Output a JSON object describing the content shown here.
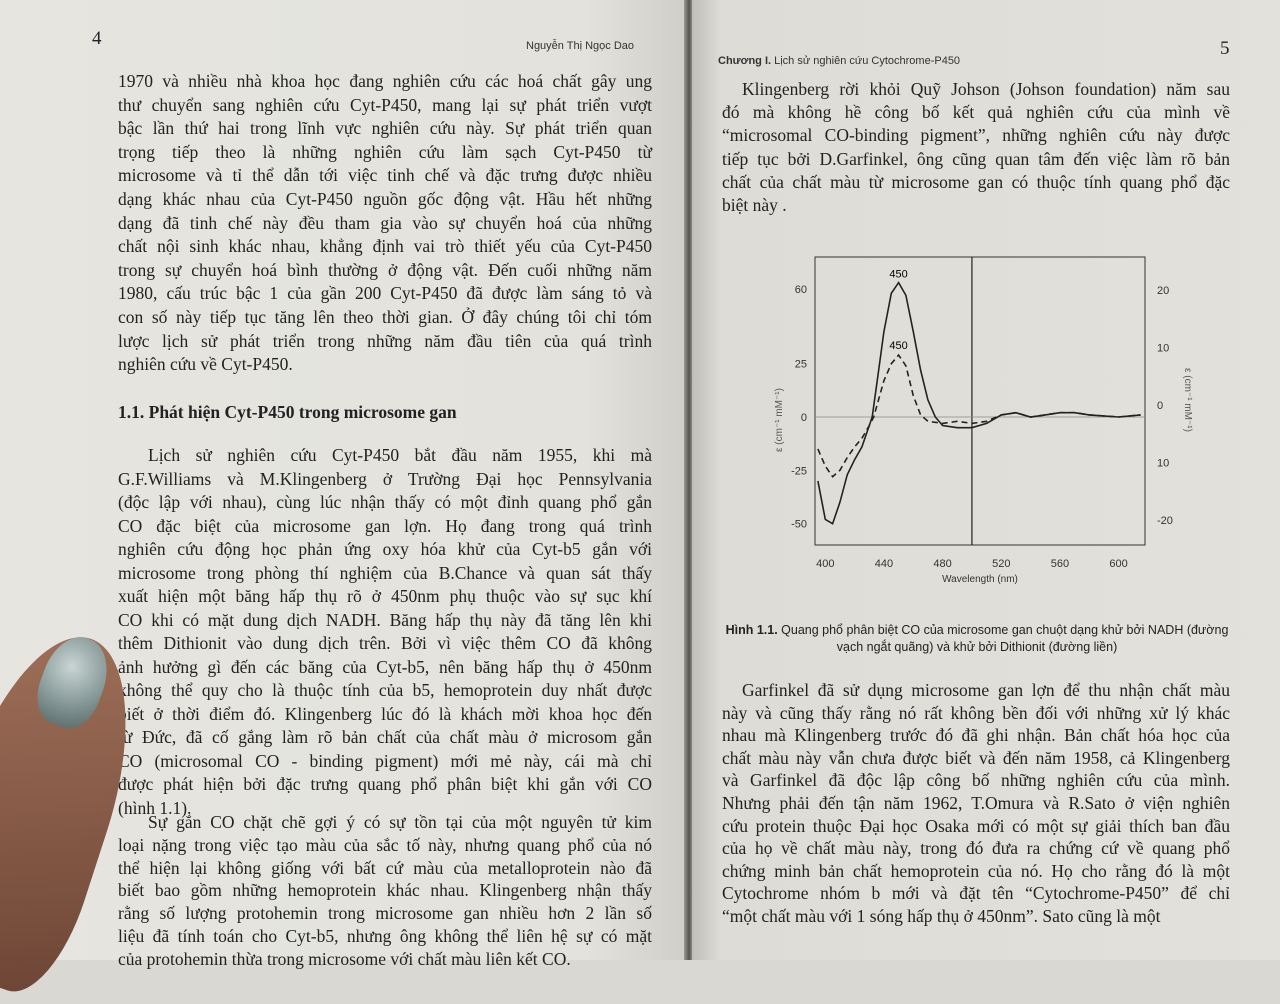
{
  "left_page": {
    "page_number": "4",
    "running_header": "Nguyễn Thị Ngọc Dao",
    "paragraph1": [
      "1970 và nhiều nhà khoa học đang nghiên cứu các hoá chất gây ung",
      "thư chuyển sang nghiên cứu Cyt-P450, mang lại sự phát triển vượt",
      "bậc lần thứ hai trong lĩnh vực nghiên cứu này. Sự phát triển quan",
      "trọng tiếp theo là những nghiên cứu làm sạch Cyt-P450 từ",
      "microsome và tỉ thể dẫn tới việc tinh chế và đặc trưng được nhiều",
      "dạng khác nhau của Cyt-P450 nguồn gốc động vật. Hầu hết những",
      "dạng đã tinh chế này đều tham gia vào sự chuyển hoá của những",
      "chất nội sinh khác nhau, khẳng định vai trò thiết yếu của Cyt-P450",
      "trong sự chuyển hoá bình thường ở động vật. Đến cuối những năm",
      "1980, cấu trúc bậc 1 của gần 200 Cyt-P450 đã được làm sáng tỏ và",
      "con số này tiếp tục tăng lên theo thời gian. Ở đây chúng tôi chỉ tóm",
      "lược lịch sử phát triển trong những năm đầu tiên của quá trình",
      "nghiên cứu về Cyt-P450."
    ],
    "section_heading": "1.1. Phát hiện  Cyt-P450 trong microsome gan",
    "paragraph2": [
      "Lịch sử nghiên cứu Cyt-P450 bắt đầu năm 1955, khi mà",
      "G.F.Williams và M.Klingenberg ở Trường Đại học Pennsylvania",
      "(độc lập với nhau), cùng lúc nhận thấy có một đỉnh quang phổ gắn",
      "CO đặc biệt của microsome gan lợn. Họ đang trong quá trình",
      "nghiên cứu động học phản ứng oxy hóa khử của Cyt-b5 gắn với",
      "microsome trong phòng thí nghiệm của B.Chance và quan sát thấy",
      "xuất hiện một băng hấp thụ rõ ở 450nm phụ thuộc vào sự sục khí",
      "CO khi có mặt dung dịch NADH. Băng hấp thụ này đã tăng lên khi",
      "thêm Dithionit vào dung dịch trên. Bởi vì việc thêm CO đã không",
      "ảnh hưởng gì đến các băng của Cyt-b5, nên băng hấp thụ ở 450nm",
      "không thể quy cho là thuộc tính của b5, hemoprotein duy nhất được",
      "biết ở thời điểm đó. Klingenberg lúc đó là khách mời khoa học đến",
      "từ Đức, đã cố gắng làm rõ bản chất của chất màu ở microsom gắn",
      "CO (microsomal CO - binding pigment) mới mẻ này, cái mà chỉ",
      "được phát hiện bởi đặc trưng quang phổ phân biệt khi gắn với CO",
      "(hình 1.1)."
    ],
    "paragraph3": [
      "Sự gắn CO chặt chẽ gợi ý có sự tồn tại của một nguyên tử kim",
      "loại nặng trong việc tạo màu của sắc tố này, nhưng quang phổ của nó",
      "thể hiện lại không giống với bất cứ màu của metalloprotein nào đã",
      "biết bao gồm những hemoprotein khác nhau. Klingenberg nhận thấy",
      "rằng số lượng protohemin trong microsome gan nhiều hơn 2 lần số",
      "liệu đã tính toán cho Cyt-b5, nhưng ông không thể liên hệ sự có mặt",
      "của protohemin thừa trong microsome với chất màu liên kết CO."
    ]
  },
  "right_page": {
    "page_number": "5",
    "running_header_bold": "Chương I.",
    "running_header": " Lịch sử nghiên cứu Cytochrome-P450",
    "paragraph1": [
      "Klingenberg rời khỏi Quỹ Johson (Johson foundation) năm sau",
      "đó mà không hề công bố kết quả nghiên cứu của mình về",
      "“microsomal CO-binding pigment”, những nghiên cứu này được",
      "tiếp tục bởi D.Garfinkel, ông cũng quan tâm đến việc làm rõ bản",
      "chất của chất màu từ microsome gan có thuộc tính quang phổ đặc",
      "biệt này ."
    ],
    "figure_caption_label": "Hình 1.1.",
    "figure_caption": " Quang phổ phân biệt CO của microsome gan chuột dạng khử bởi NADH (đường vạch ngắt quãng) và khử bởi Dithionit (đường liền)",
    "paragraph2": [
      "Garfinkel đã sử dụng microsome gan lợn để thu nhận chất màu",
      "này và cũng thấy rằng nó rất không bền đối với những xử lý khác",
      "nhau mà Klingenberg trước đó đã ghi nhận. Bản chất hóa học của",
      "chất màu này vẫn chưa được biết và đến năm 1958, cả Klingenberg",
      "và Garfinkel đã độc lập công bố những nghiên cứu của mình.",
      "Nhưng phải đến tận năm 1962, T.Omura và R.Sato ở viện nghiên",
      "cứu protein thuộc Đại học Osaka mới có một sự giải thích ban đầu",
      "của họ về chất màu này, trong đó đưa ra chứng cứ về quang phổ",
      "chứng minh bản chất hemoprotein của nó. Họ cho rằng đó là một",
      "Cytochrome nhóm b mới và đặt tên “Cytochrome-P450” để chỉ",
      "“một chất màu với 1 sóng hấp thụ ở 450nm”. Sato cũng là một"
    ]
  },
  "chart_data": {
    "type": "line",
    "xlabel": "Wavelength (nm)",
    "ylabel": "ε (cm⁻¹ mM⁻¹)",
    "ylabel_right": "ε (cm⁻¹ mM⁻¹)",
    "xlim": [
      393,
      618
    ],
    "ylim": [
      -60,
      75
    ],
    "x_ticks": [
      "400",
      "440",
      "480",
      "520",
      "560",
      "600"
    ],
    "y_ticks": [
      "60",
      "25",
      "0",
      "-25",
      "-50"
    ],
    "y_ticks_right": [
      "20",
      "10",
      "0",
      "10",
      "-20"
    ],
    "annotations": [
      "450",
      "450"
    ],
    "grid": false,
    "series": [
      {
        "style": "solid",
        "points": [
          [
            395,
            -30
          ],
          [
            400,
            -48
          ],
          [
            405,
            -50
          ],
          [
            410,
            -40
          ],
          [
            415,
            -27
          ],
          [
            420,
            -20
          ],
          [
            425,
            -14
          ],
          [
            430,
            -4
          ],
          [
            432,
            0
          ],
          [
            436,
            20
          ],
          [
            440,
            40
          ],
          [
            445,
            58
          ],
          [
            450,
            63
          ],
          [
            455,
            57
          ],
          [
            460,
            40
          ],
          [
            465,
            22
          ],
          [
            470,
            8
          ],
          [
            475,
            0
          ],
          [
            480,
            -4
          ],
          [
            490,
            -5
          ],
          [
            500,
            -5
          ],
          [
            510,
            -3
          ],
          [
            520,
            1
          ],
          [
            530,
            2
          ],
          [
            540,
            0
          ],
          [
            550,
            1
          ],
          [
            560,
            2
          ],
          [
            570,
            2
          ],
          [
            580,
            1
          ],
          [
            600,
            0
          ],
          [
            615,
            1
          ]
        ]
      },
      {
        "style": "dashed",
        "points": [
          [
            395,
            -15
          ],
          [
            400,
            -23
          ],
          [
            405,
            -28
          ],
          [
            410,
            -25
          ],
          [
            415,
            -19
          ],
          [
            420,
            -14
          ],
          [
            425,
            -10
          ],
          [
            430,
            -4
          ],
          [
            433,
            0
          ],
          [
            440,
            17
          ],
          [
            445,
            25
          ],
          [
            450,
            29
          ],
          [
            455,
            24
          ],
          [
            460,
            10
          ],
          [
            465,
            1
          ],
          [
            470,
            -2
          ],
          [
            480,
            -3
          ],
          [
            490,
            -2
          ],
          [
            500,
            -3
          ],
          [
            510,
            -2
          ],
          [
            520,
            1
          ],
          [
            530,
            2
          ],
          [
            540,
            0
          ],
          [
            550,
            1
          ],
          [
            560,
            2
          ],
          [
            570,
            2
          ],
          [
            580,
            1
          ],
          [
            600,
            0
          ],
          [
            615,
            1
          ]
        ]
      }
    ]
  }
}
